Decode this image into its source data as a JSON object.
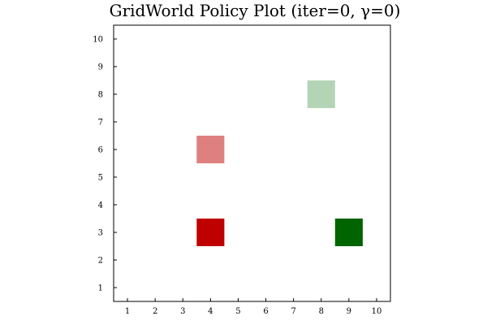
{
  "chart_data": {
    "type": "heatmap",
    "title": "GridWorld Policy Plot (iter=0, γ=0)",
    "xlabel": "",
    "ylabel": "",
    "xlim": [
      0.5,
      10.5
    ],
    "ylim": [
      0.5,
      10.5
    ],
    "xticks": [
      1,
      2,
      3,
      4,
      5,
      6,
      7,
      8,
      9,
      10
    ],
    "yticks": [
      1,
      2,
      3,
      4,
      5,
      6,
      7,
      8,
      9,
      10
    ],
    "grid": false,
    "cells": [
      {
        "x": 8,
        "y": 8,
        "color": "#b3d5b6"
      },
      {
        "x": 4,
        "y": 6,
        "color": "#df8080"
      },
      {
        "x": 4,
        "y": 3,
        "color": "#bf0000"
      },
      {
        "x": 9,
        "y": 3,
        "color": "#006400"
      }
    ]
  }
}
